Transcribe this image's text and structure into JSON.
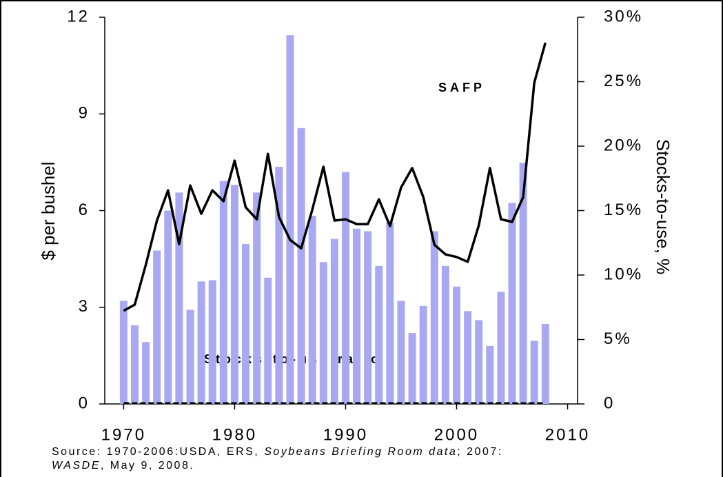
{
  "chart_data": {
    "type": "bar-line",
    "x": [
      1970,
      1971,
      1972,
      1973,
      1974,
      1975,
      1976,
      1977,
      1978,
      1979,
      1980,
      1981,
      1982,
      1983,
      1984,
      1985,
      1986,
      1987,
      1988,
      1989,
      1990,
      1991,
      1992,
      1993,
      1994,
      1995,
      1996,
      1997,
      1998,
      1999,
      2000,
      2001,
      2002,
      2003,
      2004,
      2005,
      2006,
      2007,
      2008
    ],
    "series": [
      {
        "name": "Stocks-to-use ratio",
        "type": "bar",
        "axis": "y2",
        "color": "#a9a9f3",
        "values": [
          8.0,
          6.1,
          4.8,
          11.9,
          15.0,
          16.4,
          7.3,
          9.5,
          9.6,
          17.3,
          17.0,
          12.4,
          16.4,
          9.8,
          18.4,
          28.6,
          21.4,
          14.6,
          11.0,
          12.8,
          18.0,
          13.6,
          13.4,
          10.7,
          14.1,
          8.0,
          5.5,
          7.6,
          13.4,
          10.7,
          9.1,
          7.2,
          6.5,
          4.5,
          8.7,
          15.6,
          18.7,
          4.9,
          6.2
        ]
      },
      {
        "name": "SAFP",
        "type": "line",
        "axis": "y",
        "color": "#000000",
        "values": [
          2.89,
          3.08,
          4.32,
          5.69,
          6.63,
          4.96,
          6.78,
          5.9,
          6.63,
          6.29,
          7.55,
          6.1,
          5.73,
          7.76,
          5.8,
          5.09,
          4.83,
          6.03,
          7.36,
          5.69,
          5.73,
          5.58,
          5.58,
          6.35,
          5.52,
          6.72,
          7.32,
          6.42,
          4.94,
          4.64,
          4.56,
          4.41,
          5.54,
          7.32,
          5.73,
          5.65,
          6.42,
          9.97,
          11.21
        ]
      }
    ],
    "xlim": [
      1968.3,
      2010.9
    ],
    "xticks": [
      1970,
      1980,
      1990,
      2000,
      2010
    ],
    "ylim": [
      0,
      12
    ],
    "yticks": [
      0,
      3,
      6,
      9,
      12
    ],
    "y2lim": [
      0,
      30
    ],
    "y2ticks": [
      0,
      {
        "value": 5,
        "label": "5%"
      },
      {
        "value": 10,
        "label": "10%"
      },
      {
        "value": 15,
        "label": "15%"
      },
      {
        "value": 20,
        "label": "20%"
      },
      {
        "value": 25,
        "label": "25%"
      },
      {
        "value": 30,
        "label": "30%"
      }
    ],
    "y_label": "$ per bushel",
    "y2_label": "Stocks-to-use, %",
    "source": [
      [
        "Source: 1970-2006:USDA, ERS, ",
        "Soybeans Briefing Room data",
        "; 2007:"
      ],
      [
        "WASDE",
        ", May 9, 2008."
      ]
    ]
  }
}
